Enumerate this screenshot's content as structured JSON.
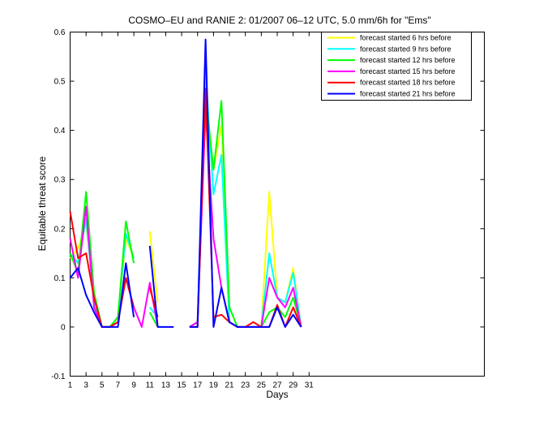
{
  "chart_data": {
    "type": "line",
    "title": "COSMO–EU and RANIE 2: 01/2007 06–12 UTC, 5.0 mm/6h for \"Ems\"",
    "xlabel": "Days",
    "ylabel": "Equitable threat score",
    "xlim": [
      1,
      53
    ],
    "ylim": [
      -0.1,
      0.6
    ],
    "xticks": [
      1,
      3,
      5,
      7,
      9,
      11,
      13,
      15,
      17,
      19,
      21,
      23,
      25,
      27,
      29,
      31
    ],
    "yticks": [
      -0.1,
      0,
      0.1,
      0.2,
      0.3,
      0.4,
      0.5,
      0.6
    ],
    "grid": false,
    "legend_position": "top-right",
    "series": [
      {
        "name": "forecast started  6 hrs before",
        "color": "#ffff00",
        "values": [
          [
            1,
            0.14
          ],
          [
            2,
            0.16
          ],
          [
            3,
            0.21
          ],
          [
            4,
            0.06
          ],
          [
            5,
            0.0
          ],
          [
            6,
            0.0
          ],
          [
            7,
            0.02
          ],
          [
            8,
            0.18
          ],
          [
            9,
            0.14
          ],
          null,
          [
            11,
            0.195
          ],
          [
            12,
            0.05
          ],
          null,
          null,
          null,
          [
            16,
            0.0
          ],
          [
            17,
            0.01
          ],
          [
            18,
            0.47
          ],
          [
            19,
            0.32
          ],
          [
            20,
            0.41
          ],
          [
            21,
            0.01
          ],
          [
            22,
            0.0
          ],
          [
            23,
            0.0
          ],
          [
            24,
            0.0
          ],
          [
            25,
            0.0
          ],
          [
            26,
            0.275
          ],
          [
            27,
            0.06
          ],
          [
            28,
            0.05
          ],
          [
            29,
            0.12
          ],
          [
            30,
            0.0
          ]
        ]
      },
      {
        "name": "forecast started  9 hrs before",
        "color": "#00ffff",
        "values": [
          [
            1,
            0.15
          ],
          [
            2,
            0.13
          ],
          [
            3,
            0.22
          ],
          [
            4,
            0.05
          ],
          [
            5,
            0.0
          ],
          [
            6,
            0.0
          ],
          [
            7,
            0.02
          ],
          [
            8,
            0.19
          ],
          [
            9,
            0.14
          ],
          null,
          [
            11,
            0.04
          ],
          [
            12,
            0.02
          ],
          null,
          null,
          null,
          [
            16,
            0.0
          ],
          [
            17,
            0.01
          ],
          [
            18,
            0.52
          ],
          [
            19,
            0.27
          ],
          [
            20,
            0.35
          ],
          [
            21,
            0.01
          ],
          [
            22,
            0.0
          ],
          [
            23,
            0.0
          ],
          [
            24,
            0.0
          ],
          [
            25,
            0.0
          ],
          [
            26,
            0.15
          ],
          [
            27,
            0.06
          ],
          [
            28,
            0.05
          ],
          [
            29,
            0.11
          ],
          [
            30,
            0.0
          ]
        ]
      },
      {
        "name": "forecast started 12 hrs before",
        "color": "#00ff00",
        "values": [
          [
            1,
            0.15
          ],
          [
            2,
            0.11
          ],
          [
            3,
            0.275
          ],
          [
            4,
            0.07
          ],
          [
            5,
            0.0
          ],
          [
            6,
            0.0
          ],
          [
            7,
            0.02
          ],
          [
            8,
            0.215
          ],
          [
            9,
            0.13
          ],
          null,
          [
            11,
            0.03
          ],
          [
            12,
            0.0
          ],
          null,
          null,
          null,
          [
            16,
            0.0
          ],
          [
            17,
            0.01
          ],
          [
            18,
            0.47
          ],
          [
            19,
            0.32
          ],
          [
            20,
            0.46
          ],
          [
            21,
            0.04
          ],
          [
            22,
            0.0
          ],
          [
            23,
            0.0
          ],
          [
            24,
            0.0
          ],
          [
            25,
            0.0
          ],
          [
            26,
            0.03
          ],
          [
            27,
            0.04
          ],
          [
            28,
            0.02
          ],
          [
            29,
            0.06
          ],
          [
            30,
            0.0
          ]
        ]
      },
      {
        "name": "forecast started 15 hrs before",
        "color": "#ff00ff",
        "values": [
          [
            1,
            0.18
          ],
          [
            2,
            0.1
          ],
          [
            3,
            0.245
          ],
          [
            4,
            0.04
          ],
          [
            5,
            0.0
          ],
          [
            6,
            0.0
          ],
          [
            7,
            0.01
          ],
          [
            8,
            0.1
          ],
          [
            9,
            0.04
          ],
          [
            10,
            0.0
          ],
          [
            11,
            0.09
          ],
          [
            12,
            0.0
          ],
          null,
          null,
          null,
          [
            16,
            0.0
          ],
          [
            17,
            0.01
          ],
          [
            18,
            0.44
          ],
          [
            19,
            0.18
          ],
          [
            20,
            0.08
          ],
          [
            21,
            0.01
          ],
          [
            22,
            0.0
          ],
          [
            23,
            0.0
          ],
          [
            24,
            0.0
          ],
          [
            25,
            0.0
          ],
          [
            26,
            0.1
          ],
          [
            27,
            0.06
          ],
          [
            28,
            0.04
          ],
          [
            29,
            0.08
          ],
          [
            30,
            0.0
          ]
        ]
      },
      {
        "name": "forecast started 18 hrs before",
        "color": "#ff0000",
        "values": [
          [
            1,
            0.235
          ],
          [
            2,
            0.14
          ],
          [
            3,
            0.15
          ],
          [
            4,
            0.06
          ],
          [
            5,
            0.0
          ],
          [
            6,
            0.0
          ],
          [
            7,
            0.01
          ],
          [
            8,
            0.1
          ],
          [
            9,
            0.04
          ],
          null,
          [
            11,
            0.08
          ],
          [
            12,
            0.02
          ],
          null,
          null,
          null,
          [
            16,
            0.0
          ],
          [
            17,
            0.0
          ],
          [
            18,
            0.485
          ],
          [
            19,
            0.02
          ],
          [
            20,
            0.025
          ],
          [
            21,
            0.01
          ],
          [
            22,
            0.0
          ],
          [
            23,
            0.0
          ],
          [
            24,
            0.01
          ],
          [
            25,
            0.0
          ],
          [
            26,
            0.0
          ],
          [
            27,
            0.045
          ],
          [
            28,
            0.0
          ],
          [
            29,
            0.04
          ],
          [
            30,
            0.0
          ]
        ]
      },
      {
        "name": "forecast started 21 hrs before",
        "color": "#0000ff",
        "values": [
          [
            1,
            0.1
          ],
          [
            2,
            0.12
          ],
          [
            3,
            0.065
          ],
          [
            4,
            0.03
          ],
          [
            5,
            0.0
          ],
          [
            6,
            0.0
          ],
          [
            7,
            0.0
          ],
          [
            8,
            0.13
          ],
          [
            9,
            0.02
          ],
          null,
          [
            11,
            0.165
          ],
          [
            12,
            0.0
          ],
          [
            13,
            0.0
          ],
          [
            14,
            0.0
          ],
          null,
          [
            16,
            0.0
          ],
          [
            17,
            0.0
          ],
          [
            18,
            0.585
          ],
          [
            19,
            0.0
          ],
          [
            20,
            0.08
          ],
          [
            21,
            0.01
          ],
          [
            22,
            0.0
          ],
          [
            23,
            0.0
          ],
          [
            24,
            0.0
          ],
          [
            25,
            0.0
          ],
          [
            26,
            0.0
          ],
          [
            27,
            0.04
          ],
          [
            28,
            0.0
          ],
          [
            29,
            0.025
          ],
          [
            30,
            0.0
          ]
        ]
      }
    ]
  }
}
